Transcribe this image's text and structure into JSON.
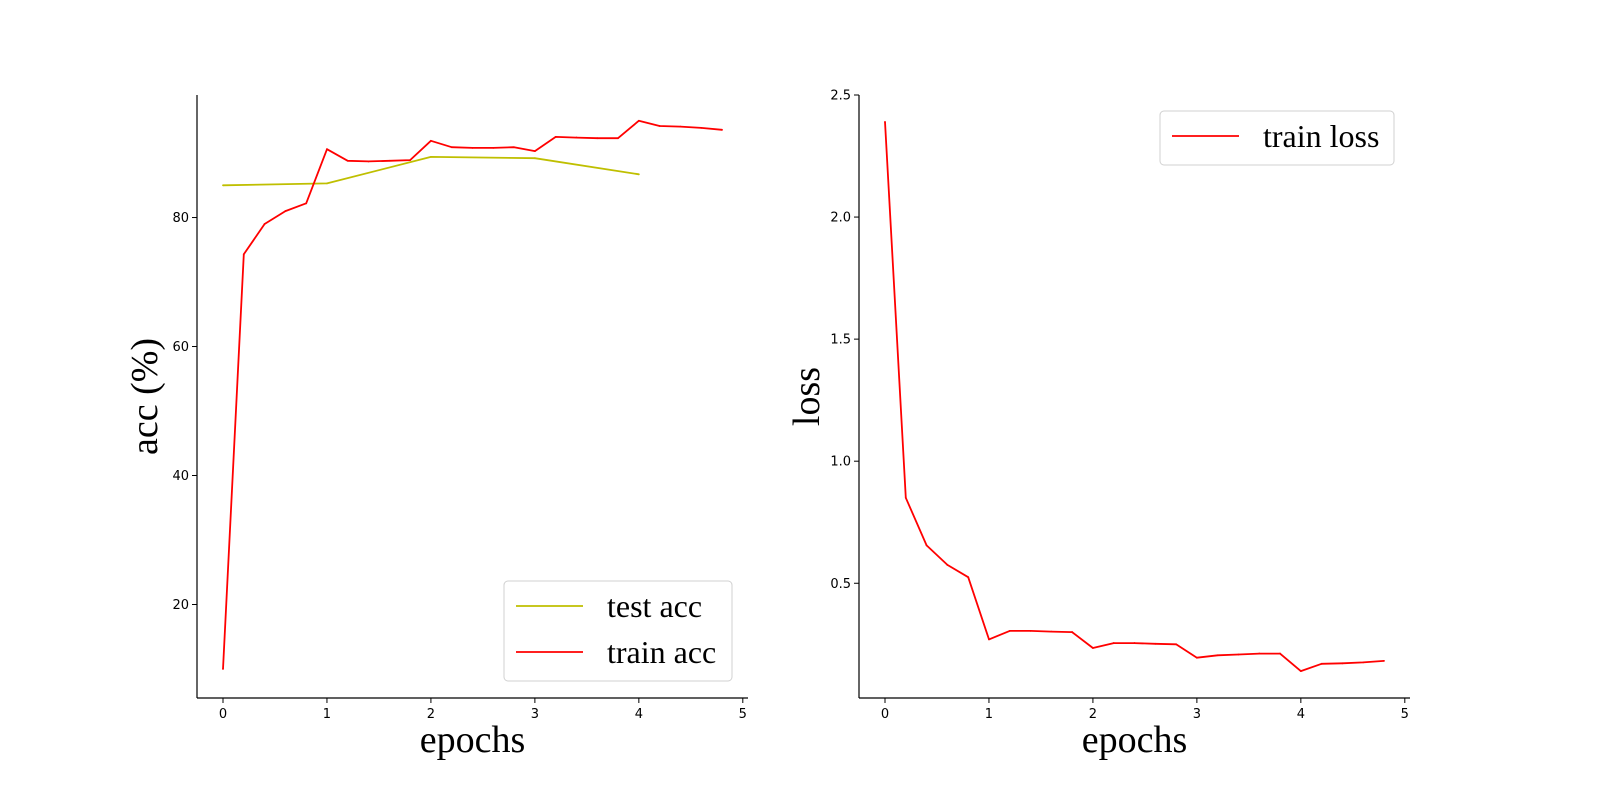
{
  "chart_data": [
    {
      "type": "line",
      "xlabel": "epochs",
      "ylabel": "acc (%)",
      "xlim": [
        -0.25,
        5.05
      ],
      "ylim": [
        5.5,
        99
      ],
      "xticks": [
        0,
        1,
        2,
        3,
        4,
        5
      ],
      "xtick_labels": [
        "0",
        "1",
        "2",
        "3",
        "4",
        "5"
      ],
      "yticks": [
        20,
        40,
        60,
        80
      ],
      "ytick_labels": [
        "20",
        "40",
        "60",
        "80"
      ],
      "legend_position": "lower-right",
      "grid": false,
      "series": [
        {
          "name": "test acc",
          "color": "#bfbf00",
          "x": [
            0,
            1,
            2,
            3,
            4
          ],
          "y": [
            85.0,
            85.3,
            89.4,
            89.2,
            86.7
          ]
        },
        {
          "name": "train acc",
          "color": "#ff0000",
          "x": [
            0,
            0.2,
            0.4,
            0.6,
            0.8,
            1.0,
            1.2,
            1.4,
            1.6,
            1.8,
            2.0,
            2.2,
            2.4,
            2.6,
            2.8,
            3.0,
            3.2,
            3.4,
            3.6,
            3.8,
            4.0,
            4.2,
            4.4,
            4.6,
            4.8
          ],
          "y": [
            10.0,
            74.3,
            79.0,
            81.0,
            82.2,
            90.6,
            88.8,
            88.7,
            88.8,
            88.9,
            91.9,
            90.9,
            90.8,
            90.8,
            90.9,
            90.3,
            92.5,
            92.4,
            92.3,
            92.3,
            95.0,
            94.2,
            94.1,
            93.9,
            93.6
          ]
        }
      ]
    },
    {
      "type": "line",
      "xlabel": "epochs",
      "ylabel": "loss",
      "xlim": [
        -0.25,
        5.05
      ],
      "ylim": [
        0.03,
        2.5
      ],
      "xticks": [
        0,
        1,
        2,
        3,
        4,
        5
      ],
      "xtick_labels": [
        "0",
        "1",
        "2",
        "3",
        "4",
        "5"
      ],
      "yticks": [
        0.5,
        1.0,
        1.5,
        2.0,
        2.5
      ],
      "ytick_labels": [
        "0.5",
        "1.0",
        "1.5",
        "2.0",
        "2.5"
      ],
      "legend_position": "upper-right",
      "grid": false,
      "series": [
        {
          "name": "train loss",
          "color": "#ff0000",
          "x": [
            0,
            0.2,
            0.4,
            0.6,
            0.8,
            1.0,
            1.2,
            1.4,
            1.6,
            1.8,
            2.0,
            2.2,
            2.4,
            2.6,
            2.8,
            3.0,
            3.2,
            3.4,
            3.6,
            3.8,
            4.0,
            4.2,
            4.4,
            4.6,
            4.8
          ],
          "y": [
            2.39,
            0.85,
            0.655,
            0.575,
            0.525,
            0.27,
            0.305,
            0.305,
            0.302,
            0.3,
            0.235,
            0.255,
            0.255,
            0.252,
            0.25,
            0.195,
            0.205,
            0.208,
            0.212,
            0.212,
            0.14,
            0.17,
            0.172,
            0.176,
            0.182
          ]
        }
      ]
    }
  ]
}
